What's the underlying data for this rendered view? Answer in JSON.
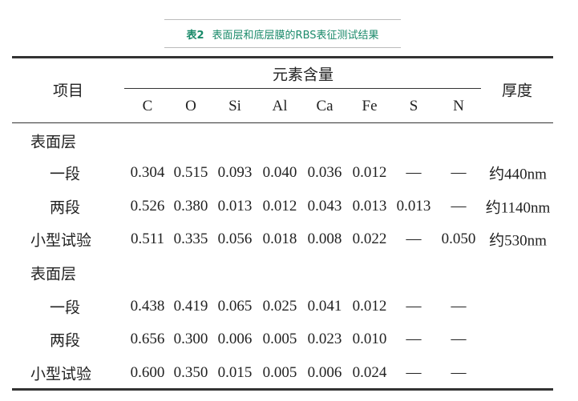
{
  "caption": {
    "number": "表2",
    "title": "表面层和底层膜的RBS表征测试结果"
  },
  "header": {
    "item": "项目",
    "group": "元素含量",
    "thickness": "厚度",
    "elements": [
      "C",
      "O",
      "Si",
      "Al",
      "Ca",
      "Fe",
      "S",
      "N"
    ]
  },
  "rows": [
    {
      "label": "表面层",
      "section": true,
      "values": []
    },
    {
      "label": "一段",
      "values": [
        "0.304",
        "0.515",
        "0.093",
        "0.040",
        "0.036",
        "0.012",
        "—",
        "—"
      ],
      "thickness": "约440nm"
    },
    {
      "label": "两段",
      "values": [
        "0.526",
        "0.380",
        "0.013",
        "0.012",
        "0.043",
        "0.013",
        "0.013",
        "—"
      ],
      "thickness": "约1140nm"
    },
    {
      "label": "小型试验",
      "values": [
        "0.511",
        "0.335",
        "0.056",
        "0.018",
        "0.008",
        "0.022",
        "—",
        "0.050"
      ],
      "thickness": "约530nm"
    },
    {
      "label": "表面层",
      "section": true,
      "values": []
    },
    {
      "label": "一段",
      "values": [
        "0.438",
        "0.419",
        "0.065",
        "0.025",
        "0.041",
        "0.012",
        "—",
        "—"
      ],
      "thickness": ""
    },
    {
      "label": "两段",
      "values": [
        "0.656",
        "0.300",
        "0.006",
        "0.005",
        "0.023",
        "0.010",
        "—",
        "—"
      ],
      "thickness": ""
    },
    {
      "label": "小型试验",
      "values": [
        "0.600",
        "0.350",
        "0.015",
        "0.005",
        "0.006",
        "0.024",
        "—",
        "—"
      ],
      "thickness": ""
    }
  ],
  "colors": {
    "caption": "#1a8a6a",
    "rules": "#333333"
  }
}
